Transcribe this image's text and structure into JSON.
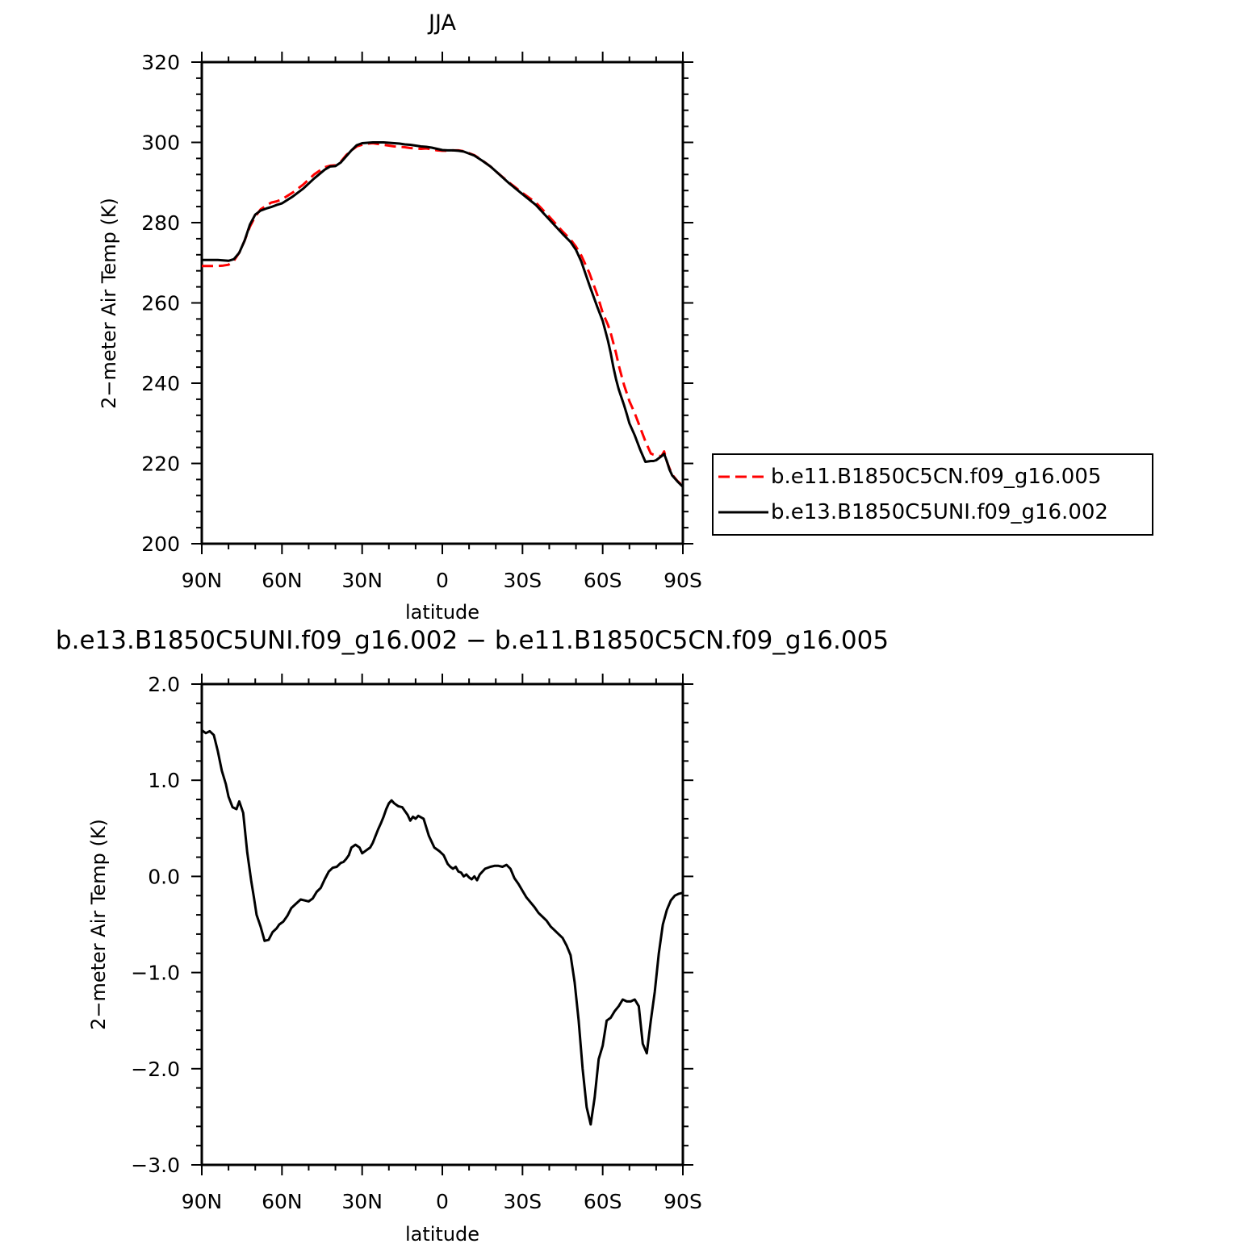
{
  "chart_data": [
    {
      "type": "line",
      "title": "JJA",
      "xlabel": "latitude",
      "ylabel": "2−meter Air Temp (K)",
      "xlim": [
        90,
        -90
      ],
      "ylim": [
        200,
        320
      ],
      "x_ticks": [
        90,
        60,
        30,
        0,
        -30,
        -60,
        -90
      ],
      "x_tick_labels": [
        "90N",
        "60N",
        "30N",
        "0",
        "30S",
        "60S",
        "90S"
      ],
      "y_ticks": [
        200,
        220,
        240,
        260,
        280,
        300,
        320
      ],
      "y_tick_labels": [
        "200",
        "220",
        "240",
        "260",
        "280",
        "300",
        "320"
      ],
      "grid": false,
      "legend": "outside-right",
      "series": [
        {
          "name": "b.e11.B1850C5CN.f09_g16.005",
          "color": "#ff0000",
          "dash": "dashed",
          "x": [
            90,
            87,
            84,
            82,
            80,
            78,
            76,
            74,
            72,
            70,
            68,
            66,
            64,
            62,
            60,
            56,
            52,
            48,
            44,
            42,
            40,
            38,
            36,
            34,
            32,
            30,
            28,
            26,
            24,
            22,
            20,
            18,
            16,
            14,
            12,
            10,
            8,
            6,
            4,
            2,
            0,
            -2,
            -4,
            -6,
            -8,
            -10,
            -12,
            -15,
            -18,
            -20,
            -25,
            -30,
            -35,
            -40,
            -45,
            -48,
            -50,
            -52,
            -55,
            -58,
            -60,
            -61,
            -62,
            -63,
            -64,
            -65,
            -66,
            -67,
            -68,
            -69,
            -70,
            -72,
            -74,
            -76,
            -78,
            -79,
            -80,
            -82,
            -83,
            -84,
            -85,
            -86,
            -88,
            -90
          ],
          "y": [
            269.2,
            269.2,
            269.2,
            269.3,
            269.5,
            270.5,
            272.5,
            275.5,
            279.0,
            281.5,
            283.3,
            284.2,
            285.0,
            285.3,
            285.8,
            287.5,
            289.5,
            292.0,
            293.8,
            294.2,
            294.3,
            295.2,
            296.8,
            298.0,
            299.0,
            299.4,
            299.7,
            299.8,
            299.6,
            299.4,
            299.2,
            299.0,
            298.9,
            298.8,
            298.6,
            298.5,
            298.4,
            298.5,
            298.3,
            298.0,
            297.9,
            297.9,
            298.0,
            298.0,
            297.8,
            297.3,
            296.8,
            295.5,
            294.0,
            292.8,
            290.0,
            287.4,
            285.0,
            281.5,
            277.8,
            275.8,
            274.0,
            271.8,
            267.5,
            262.0,
            257.5,
            256.0,
            254.5,
            252.5,
            250.0,
            247.5,
            244.5,
            242.0,
            239.5,
            237.5,
            235.5,
            232.5,
            229.0,
            225.5,
            222.5,
            222.2,
            222.0,
            221.8,
            223.0,
            220.5,
            218.8,
            217.2,
            215.6,
            214.4
          ]
        },
        {
          "name": "b.e13.B1850C5UNI.f09_g16.002",
          "color": "#000000",
          "dash": "solid",
          "x": [
            90,
            87,
            84,
            82,
            80,
            78,
            76,
            74,
            72,
            70,
            68,
            66,
            64,
            62,
            60,
            56,
            52,
            48,
            44,
            42,
            40,
            38,
            36,
            34,
            32,
            30,
            28,
            26,
            24,
            22,
            20,
            18,
            16,
            14,
            12,
            10,
            8,
            6,
            4,
            2,
            0,
            -2,
            -4,
            -6,
            -8,
            -10,
            -12,
            -15,
            -18,
            -20,
            -25,
            -30,
            -35,
            -40,
            -45,
            -48,
            -50,
            -52,
            -55,
            -58,
            -60,
            -61,
            -62,
            -63,
            -64,
            -65,
            -66,
            -67,
            -68,
            -69,
            -70,
            -72,
            -74,
            -76,
            -78,
            -79,
            -80,
            -82,
            -83,
            -84,
            -85,
            -86,
            -88,
            -90
          ],
          "y": [
            270.7,
            270.7,
            270.7,
            270.6,
            270.5,
            270.9,
            272.5,
            275.5,
            279.5,
            282.0,
            283.0,
            283.5,
            283.9,
            284.4,
            284.8,
            286.5,
            288.5,
            291.0,
            293.2,
            294.0,
            294.1,
            295.0,
            296.5,
            298.0,
            299.3,
            299.8,
            299.9,
            300.0,
            300.0,
            300.0,
            299.9,
            299.8,
            299.7,
            299.5,
            299.4,
            299.2,
            299.0,
            298.9,
            298.7,
            298.4,
            298.1,
            298.0,
            298.0,
            297.9,
            297.7,
            297.2,
            296.7,
            295.4,
            294.0,
            292.8,
            289.8,
            287.1,
            284.4,
            280.8,
            277.2,
            275.2,
            273.2,
            270.3,
            264.5,
            259.0,
            255.5,
            253.0,
            250.5,
            247.5,
            244.0,
            241.0,
            238.5,
            236.5,
            234.5,
            232.3,
            230.0,
            227.0,
            223.5,
            220.4,
            220.6,
            220.6,
            220.8,
            221.8,
            222.4,
            220.6,
            218.5,
            217.0,
            215.5,
            214.2
          ]
        }
      ]
    },
    {
      "type": "line",
      "title": "b.e13.B1850C5UNI.f09_g16.002 − b.e11.B1850C5CN.f09_g16.005",
      "xlabel": "latitude",
      "ylabel": "2−meter Air Temp (K)",
      "xlim": [
        90,
        -90
      ],
      "ylim": [
        -3.0,
        2.0
      ],
      "x_ticks": [
        90,
        60,
        30,
        0,
        -30,
        -60,
        -90
      ],
      "x_tick_labels": [
        "90N",
        "60N",
        "30N",
        "0",
        "30S",
        "60S",
        "90S"
      ],
      "y_ticks": [
        -3.0,
        -2.0,
        -1.0,
        0.0,
        1.0,
        2.0
      ],
      "y_tick_labels": [
        "−3.0",
        "−2.0",
        "−1.0",
        "0.0",
        "1.0",
        "2.0"
      ],
      "grid": false,
      "series": [
        {
          "color": "#000000",
          "x": [
            90,
            88.5,
            87,
            85.5,
            84,
            82.5,
            81,
            80,
            78.5,
            77,
            76,
            74.5,
            73,
            71.5,
            70.5,
            69.5,
            68,
            66.5,
            65,
            63.5,
            62,
            61,
            59.5,
            58,
            56.5,
            55,
            53,
            51.5,
            50,
            48.5,
            47,
            45.5,
            44,
            42.5,
            41,
            39.5,
            38,
            37,
            36,
            35,
            34,
            32.5,
            31,
            30,
            28.5,
            27,
            26,
            25,
            24,
            23,
            22,
            21,
            20,
            19,
            18,
            16.5,
            15,
            14,
            13,
            12,
            11,
            10,
            9,
            7,
            5,
            3,
            1,
            -0.5,
            -2,
            -3,
            -4,
            -5,
            -6,
            -7,
            -8,
            -9,
            -10,
            -11,
            -12,
            -13,
            -14,
            -16,
            -18,
            -19.5,
            -21,
            -22.5,
            -24,
            -25.5,
            -27,
            -28.5,
            -30,
            -31.5,
            -33,
            -34.5,
            -36,
            -37.5,
            -39,
            -40.5,
            -42,
            -43.5,
            -45,
            -46.5,
            -48,
            -49.5,
            -51,
            -52.5,
            -54,
            -55.5,
            -57,
            -58.5,
            -60,
            -61.5,
            -63,
            -64.5,
            -66,
            -67.5,
            -69,
            -70.5,
            -72,
            -73.5,
            -75,
            -76.5,
            -78,
            -79.5,
            -81,
            -82.5,
            -84,
            -85.5,
            -87,
            -88.5,
            -90
          ],
          "y": [
            1.52,
            1.49,
            1.51,
            1.47,
            1.3,
            1.1,
            0.96,
            0.83,
            0.72,
            0.7,
            0.78,
            0.66,
            0.25,
            -0.05,
            -0.22,
            -0.4,
            -0.52,
            -0.67,
            -0.66,
            -0.58,
            -0.54,
            -0.5,
            -0.47,
            -0.41,
            -0.33,
            -0.29,
            -0.24,
            -0.25,
            -0.26,
            -0.23,
            -0.16,
            -0.12,
            -0.03,
            0.05,
            0.09,
            0.1,
            0.14,
            0.15,
            0.18,
            0.22,
            0.3,
            0.33,
            0.3,
            0.24,
            0.27,
            0.3,
            0.35,
            0.42,
            0.49,
            0.55,
            0.62,
            0.7,
            0.76,
            0.79,
            0.76,
            0.73,
            0.72,
            0.68,
            0.64,
            0.58,
            0.62,
            0.6,
            0.63,
            0.6,
            0.42,
            0.3,
            0.26,
            0.22,
            0.13,
            0.1,
            0.08,
            0.1,
            0.05,
            0.04,
            0.0,
            0.02,
            -0.01,
            -0.03,
            0.0,
            -0.04,
            0.02,
            0.08,
            0.1,
            0.11,
            0.11,
            0.1,
            0.12,
            0.08,
            -0.02,
            -0.08,
            -0.15,
            -0.22,
            -0.27,
            -0.32,
            -0.38,
            -0.42,
            -0.46,
            -0.52,
            -0.56,
            -0.6,
            -0.64,
            -0.72,
            -0.82,
            -1.1,
            -1.5,
            -2.0,
            -2.4,
            -2.58,
            -2.3,
            -1.9,
            -1.76,
            -1.5,
            -1.47,
            -1.4,
            -1.35,
            -1.28,
            -1.3,
            -1.3,
            -1.28,
            -1.35,
            -1.74,
            -1.84,
            -1.5,
            -1.2,
            -0.8,
            -0.5,
            -0.35,
            -0.25,
            -0.2,
            -0.18,
            -0.17
          ]
        }
      ]
    }
  ]
}
